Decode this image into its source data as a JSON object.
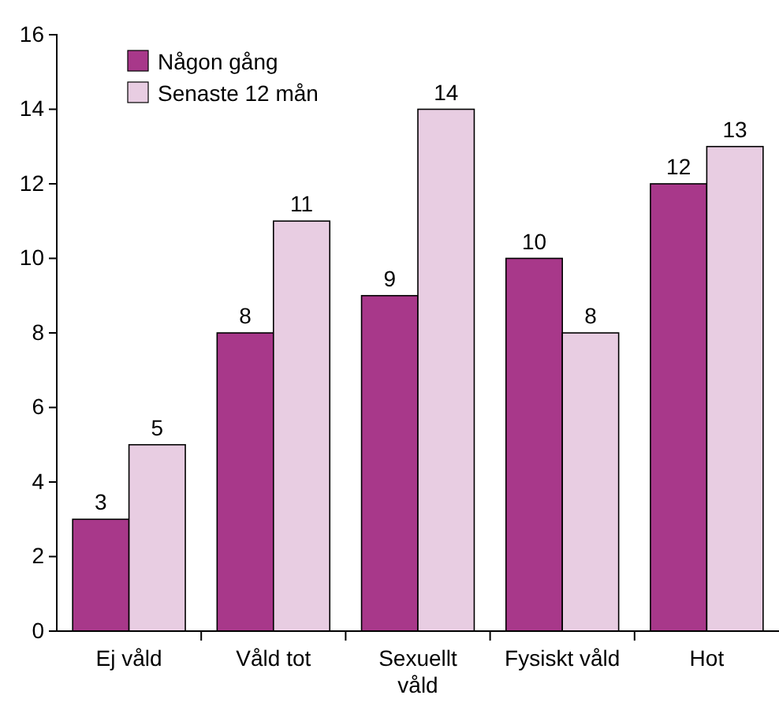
{
  "chart_data": {
    "type": "bar",
    "categories": [
      "Ej våld",
      "Våld tot",
      "Sexuellt våld",
      "Fysiskt våld",
      "Hot"
    ],
    "series": [
      {
        "name": "Någon gång",
        "color": "#a8388a",
        "values": [
          3,
          8,
          9,
          10,
          12
        ]
      },
      {
        "name": "Senaste 12 mån",
        "color": "#e8cde2",
        "values": [
          5,
          11,
          14,
          8,
          13
        ]
      }
    ],
    "ylim": [
      0,
      16
    ],
    "yticks": [
      0,
      2,
      4,
      6,
      8,
      10,
      12,
      14,
      16
    ],
    "data_labels": true,
    "legend": "top left"
  }
}
